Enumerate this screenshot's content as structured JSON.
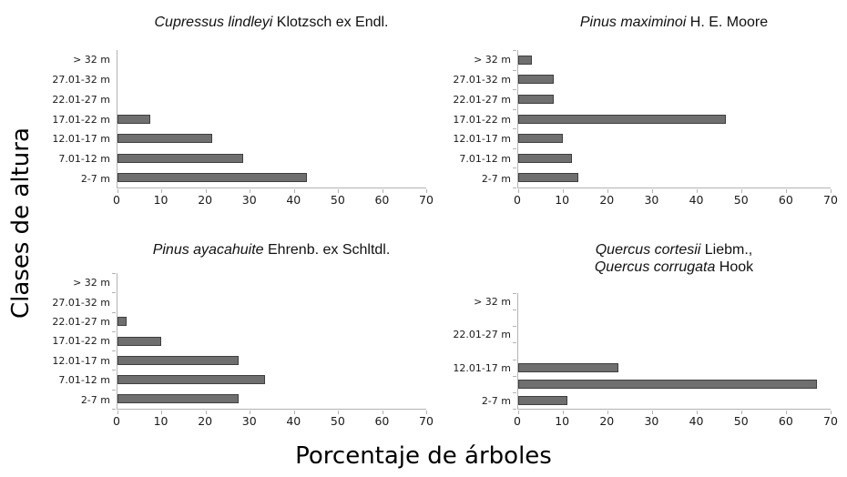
{
  "figure": {
    "y_axis_title": "Clases de altura",
    "x_axis_title": "Porcentaje de árboles"
  },
  "colors": {
    "bar_fill": "#6f6f6f",
    "bar_border": "#3f3f3f",
    "axis_line": "#b3b3b3",
    "text": "#1a1a1a"
  },
  "chart_data": [
    {
      "type": "bar",
      "orientation": "horizontal",
      "title": "Cupressus lindleyi Klotzsch ex Endl.",
      "title_lines": [
        [
          {
            "text": "Cupressus lindleyi",
            "italic": true
          },
          {
            "text": " Klotzsch ex Endl.",
            "italic": false
          }
        ]
      ],
      "categories": [
        "> 32 m",
        "27.01-32 m",
        "22.01-27 m",
        "17.01-22 m",
        "12.01-17 m",
        "7.01-12 m",
        "2-7 m"
      ],
      "values": [
        0,
        0,
        0,
        7.5,
        21.5,
        28.5,
        43
      ],
      "xlim": [
        0,
        70
      ],
      "xticks": [
        0,
        10,
        20,
        30,
        40,
        50,
        60,
        70
      ],
      "y_axis_ticks": false,
      "grid": false,
      "legend": false
    },
    {
      "type": "bar",
      "orientation": "horizontal",
      "title": "Pinus maximinoi H. E. Moore",
      "title_lines": [
        [
          {
            "text": "Pinus maximinoi",
            "italic": true
          },
          {
            "text": " H. E. Moore",
            "italic": false
          }
        ]
      ],
      "categories": [
        "> 32 m",
        "27.01-32 m",
        "22.01-27 m",
        "17.01-22 m",
        "12.01-17 m",
        "7.01-12 m",
        "2-7 m"
      ],
      "values": [
        3,
        8,
        8,
        46.5,
        10,
        12,
        13.5
      ],
      "xlim": [
        0,
        70
      ],
      "xticks": [
        0,
        10,
        20,
        30,
        40,
        50,
        60,
        70
      ],
      "y_axis_ticks": true,
      "grid": false,
      "legend": false
    },
    {
      "type": "bar",
      "orientation": "horizontal",
      "title": "Pinus ayacahuite Ehrenb. ex Schltdl.",
      "title_lines": [
        [
          {
            "text": "Pinus ayacahuite",
            "italic": true
          },
          {
            "text": " Ehrenb. ex Schltdl.",
            "italic": false
          }
        ]
      ],
      "categories": [
        "> 32 m",
        "27.01-32 m",
        "22.01-27 m",
        "17.01-22 m",
        "12.01-17 m",
        "7.01-12 m",
        "2-7 m"
      ],
      "values": [
        0,
        0,
        2,
        10,
        27.5,
        33.5,
        27.5
      ],
      "xlim": [
        0,
        70
      ],
      "xticks": [
        0,
        10,
        20,
        30,
        40,
        50,
        60,
        70
      ],
      "y_axis_ticks": true,
      "grid": false,
      "legend": false
    },
    {
      "type": "bar",
      "orientation": "horizontal",
      "title": "Quercus cortesii Liebm., Quercus corrugata Hook",
      "title_lines": [
        [
          {
            "text": "Quercus cortesii",
            "italic": true
          },
          {
            "text": " Liebm.,",
            "italic": false
          }
        ],
        [
          {
            "text": "Quercus corrugata",
            "italic": true
          },
          {
            "text": " Hook",
            "italic": false
          }
        ]
      ],
      "categories": [
        "> 32 m",
        "",
        "22.01-27 m",
        "",
        "12.01-17 m",
        "",
        "2-7 m"
      ],
      "values": [
        0,
        0,
        0,
        0,
        22.5,
        67,
        11
      ],
      "xlim": [
        0,
        70
      ],
      "xticks": [
        0,
        10,
        20,
        30,
        40,
        50,
        60,
        70
      ],
      "y_axis_ticks": true,
      "grid": false,
      "legend": false
    }
  ]
}
